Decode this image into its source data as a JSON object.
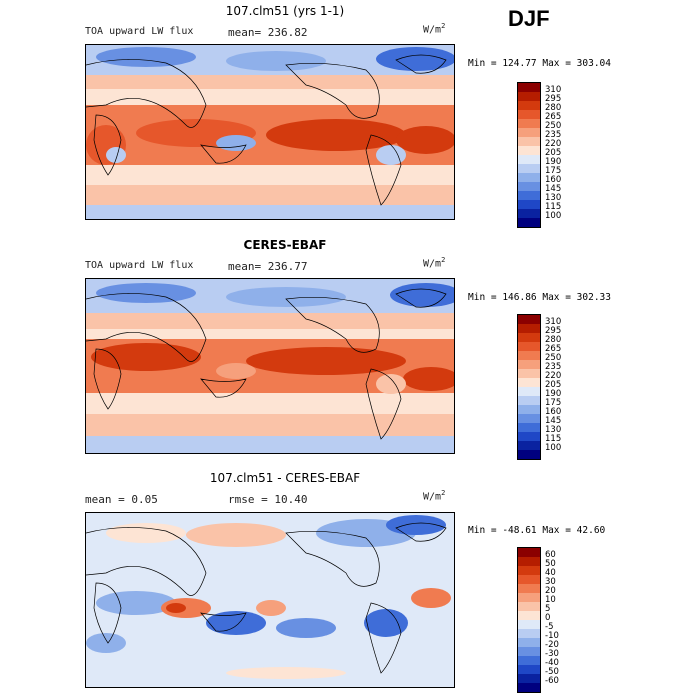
{
  "season": "DJF",
  "panels": [
    {
      "title": "107.clm51 (yrs 1-1)",
      "left_label": "TOA upward LW flux",
      "stat1": "mean= 236.82",
      "stat2": "",
      "units_base": "W/m",
      "units_exp": "2",
      "minmax": "Min = 124.77 Max = 303.04",
      "colorbar_labels": [
        "310",
        "295",
        "280",
        "265",
        "250",
        "235",
        "220",
        "205",
        "190",
        "175",
        "160",
        "145",
        "130",
        "115",
        "100"
      ]
    },
    {
      "title": "CERES-EBAF",
      "left_label": "TOA upward LW flux",
      "stat1": "mean= 236.77",
      "stat2": "",
      "units_base": "W/m",
      "units_exp": "2",
      "minmax": "Min = 146.86 Max = 302.33",
      "colorbar_labels": [
        "310",
        "295",
        "280",
        "265",
        "250",
        "235",
        "220",
        "205",
        "190",
        "175",
        "160",
        "145",
        "130",
        "115",
        "100"
      ]
    },
    {
      "title": "107.clm51 - CERES-EBAF",
      "left_label": "mean =    0.05",
      "stat1": "rmse =  10.40",
      "stat2": "",
      "units_base": "W/m",
      "units_exp": "2",
      "minmax": "Min = -48.61 Max =  42.60",
      "colorbar_labels": [
        "60",
        "50",
        "40",
        "30",
        "20",
        "10",
        "5",
        "0",
        "-5",
        "-10",
        "-20",
        "-30",
        "-40",
        "-50",
        "-60"
      ]
    }
  ],
  "colormap": [
    "#8b0000",
    "#b51d00",
    "#d33a0e",
    "#e6572b",
    "#f07b50",
    "#f6a07c",
    "#fac3a8",
    "#fde4d4",
    "#dfe9f8",
    "#b9cdf2",
    "#8fb0ea",
    "#6890e2",
    "#3f6dd8",
    "#1f47c6",
    "#0a22a0",
    "#00007f"
  ]
}
